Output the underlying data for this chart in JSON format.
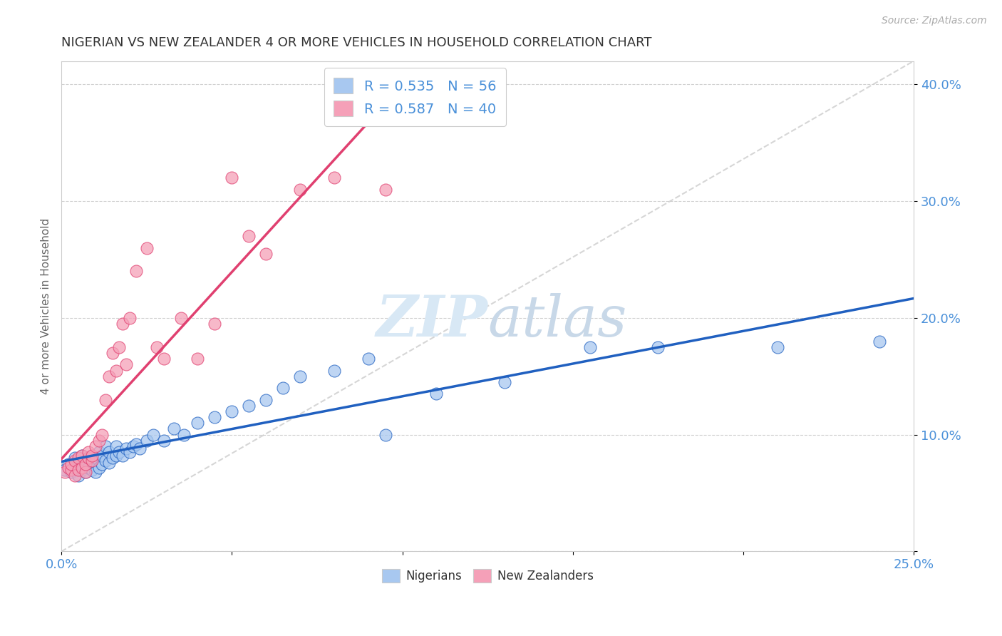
{
  "title": "NIGERIAN VS NEW ZEALANDER 4 OR MORE VEHICLES IN HOUSEHOLD CORRELATION CHART",
  "source": "Source: ZipAtlas.com",
  "ylabel": "4 or more Vehicles in Household",
  "xlim": [
    0.0,
    0.25
  ],
  "ylim": [
    0.0,
    0.42
  ],
  "nigerian_R": 0.535,
  "nigerian_N": 56,
  "nz_R": 0.587,
  "nz_N": 40,
  "nigerian_color": "#a8c8f0",
  "nz_color": "#f5a0b8",
  "nigerian_line_color": "#2060c0",
  "nz_line_color": "#e04070",
  "trend_line_color": "#cccccc",
  "background_color": "#ffffff",
  "grid_color": "#e0e0e0",
  "nigerian_x": [
    0.001,
    0.002,
    0.003,
    0.004,
    0.004,
    0.005,
    0.005,
    0.006,
    0.006,
    0.007,
    0.007,
    0.008,
    0.008,
    0.009,
    0.009,
    0.01,
    0.01,
    0.011,
    0.011,
    0.012,
    0.012,
    0.013,
    0.013,
    0.014,
    0.014,
    0.015,
    0.016,
    0.016,
    0.017,
    0.018,
    0.019,
    0.02,
    0.021,
    0.022,
    0.023,
    0.025,
    0.027,
    0.03,
    0.033,
    0.036,
    0.04,
    0.045,
    0.05,
    0.055,
    0.06,
    0.065,
    0.07,
    0.08,
    0.09,
    0.095,
    0.11,
    0.13,
    0.155,
    0.175,
    0.21,
    0.24
  ],
  "nigerian_y": [
    0.07,
    0.075,
    0.068,
    0.072,
    0.08,
    0.065,
    0.078,
    0.07,
    0.082,
    0.068,
    0.075,
    0.072,
    0.08,
    0.07,
    0.077,
    0.068,
    0.08,
    0.072,
    0.085,
    0.075,
    0.082,
    0.078,
    0.09,
    0.076,
    0.085,
    0.08,
    0.082,
    0.09,
    0.085,
    0.082,
    0.088,
    0.085,
    0.09,
    0.092,
    0.088,
    0.095,
    0.1,
    0.095,
    0.105,
    0.1,
    0.11,
    0.115,
    0.12,
    0.125,
    0.13,
    0.14,
    0.15,
    0.155,
    0.165,
    0.1,
    0.135,
    0.145,
    0.175,
    0.175,
    0.175,
    0.18
  ],
  "nz_x": [
    0.001,
    0.002,
    0.003,
    0.003,
    0.004,
    0.004,
    0.005,
    0.005,
    0.006,
    0.006,
    0.007,
    0.007,
    0.008,
    0.008,
    0.009,
    0.009,
    0.01,
    0.011,
    0.012,
    0.013,
    0.014,
    0.015,
    0.016,
    0.017,
    0.018,
    0.019,
    0.02,
    0.022,
    0.025,
    0.028,
    0.03,
    0.035,
    0.04,
    0.045,
    0.05,
    0.055,
    0.06,
    0.07,
    0.08,
    0.095
  ],
  "nz_y": [
    0.068,
    0.072,
    0.07,
    0.075,
    0.065,
    0.078,
    0.07,
    0.08,
    0.072,
    0.082,
    0.068,
    0.075,
    0.08,
    0.085,
    0.078,
    0.082,
    0.09,
    0.095,
    0.1,
    0.13,
    0.15,
    0.17,
    0.155,
    0.175,
    0.195,
    0.16,
    0.2,
    0.24,
    0.26,
    0.175,
    0.165,
    0.2,
    0.165,
    0.195,
    0.32,
    0.27,
    0.255,
    0.31,
    0.32,
    0.31
  ]
}
